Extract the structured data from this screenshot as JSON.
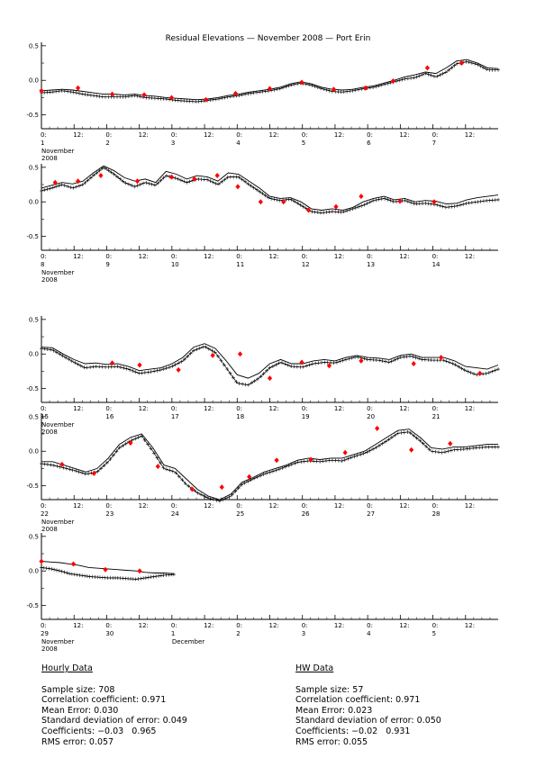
{
  "page": {
    "title": "Residual Elevations — November 2008 — Port Erin"
  },
  "chart_data": [
    {
      "type": "line",
      "y_ticks": [
        "0.5",
        "0.0",
        "-0.5"
      ],
      "ylim": [
        -0.7,
        0.55
      ],
      "x_tick_labels": [
        "0:",
        "12:",
        "0:",
        "12:",
        "0:",
        "12:",
        "0:",
        "12:",
        "0:",
        "12:",
        "0:",
        "12:",
        "0:",
        "12:"
      ],
      "day_labels": [
        "1",
        "2",
        "3",
        "4",
        "5",
        "6",
        "7"
      ],
      "month_label": [
        "November",
        "2008"
      ],
      "series": [
        {
          "values": [
            -0.15,
            -0.14,
            -0.13,
            -0.14,
            -0.16,
            -0.18,
            -0.2,
            -0.2,
            -0.21,
            -0.2,
            -0.22,
            -0.23,
            -0.25,
            -0.26,
            -0.27,
            -0.28,
            -0.27,
            -0.25,
            -0.22,
            -0.2,
            -0.17,
            -0.15,
            -0.13,
            -0.1,
            -0.05,
            -0.02,
            -0.05,
            -0.1,
            -0.13,
            -0.14,
            -0.13,
            -0.1,
            -0.08,
            -0.04,
            0.0,
            0.05,
            0.08,
            0.12,
            0.1,
            0.18,
            0.28,
            0.3,
            0.25,
            0.18,
            0.17
          ]
        },
        {
          "values": [
            -0.18,
            -0.17,
            -0.15,
            -0.17,
            -0.2,
            -0.22,
            -0.24,
            -0.24,
            -0.24,
            -0.22,
            -0.25,
            -0.26,
            -0.27,
            -0.29,
            -0.3,
            -0.31,
            -0.29,
            -0.27,
            -0.24,
            -0.22,
            -0.19,
            -0.17,
            -0.15,
            -0.12,
            -0.07,
            -0.04,
            -0.07,
            -0.12,
            -0.16,
            -0.17,
            -0.15,
            -0.12,
            -0.1,
            -0.06,
            -0.02,
            0.02,
            0.04,
            0.1,
            0.05,
            0.12,
            0.24,
            0.27,
            0.23,
            0.15,
            0.15
          ]
        },
        {
          "points": [
            [
              0.0,
              -0.15
            ],
            [
              0.08,
              -0.11
            ],
            [
              0.155,
              -0.2
            ],
            [
              0.225,
              -0.21
            ],
            [
              0.285,
              -0.25
            ],
            [
              0.36,
              -0.28
            ],
            [
              0.425,
              -0.19
            ],
            [
              0.5,
              -0.12
            ],
            [
              0.57,
              -0.03
            ],
            [
              0.64,
              -0.13
            ],
            [
              0.71,
              -0.11
            ],
            [
              0.77,
              -0.01
            ],
            [
              0.845,
              0.18
            ],
            [
              0.92,
              0.25
            ]
          ]
        }
      ]
    },
    {
      "type": "line",
      "y_ticks": [
        "0.5",
        "0.0",
        "-0.5"
      ],
      "ylim": [
        -0.7,
        0.55
      ],
      "x_tick_labels": [
        "0:",
        "12:",
        "0:",
        "12:",
        "0:",
        "12:",
        "0:",
        "12:",
        "0:",
        "12:",
        "0:",
        "12:",
        "0:",
        "12:"
      ],
      "day_labels": [
        "8",
        "9",
        "10",
        "11",
        "12",
        "13",
        "14"
      ],
      "month_label": [
        "November",
        "2008"
      ],
      "series": [
        {
          "values": [
            0.2,
            0.24,
            0.28,
            0.26,
            0.3,
            0.42,
            0.52,
            0.45,
            0.35,
            0.3,
            0.33,
            0.28,
            0.44,
            0.4,
            0.33,
            0.38,
            0.36,
            0.3,
            0.42,
            0.4,
            0.3,
            0.2,
            0.08,
            0.05,
            0.06,
            0.0,
            -0.1,
            -0.12,
            -0.1,
            -0.12,
            -0.08,
            0.0,
            0.05,
            0.08,
            0.03,
            0.05,
            0.0,
            0.02,
            0.01,
            -0.03,
            -0.02,
            0.03,
            0.06,
            0.08,
            0.1
          ]
        },
        {
          "values": [
            0.16,
            0.2,
            0.25,
            0.2,
            0.25,
            0.38,
            0.5,
            0.4,
            0.28,
            0.22,
            0.28,
            0.24,
            0.38,
            0.34,
            0.28,
            0.33,
            0.32,
            0.25,
            0.36,
            0.36,
            0.25,
            0.15,
            0.05,
            0.02,
            0.04,
            -0.05,
            -0.14,
            -0.16,
            -0.14,
            -0.15,
            -0.1,
            -0.05,
            0.02,
            0.05,
            0.0,
            0.02,
            -0.03,
            -0.02,
            -0.04,
            -0.08,
            -0.06,
            -0.02,
            0.0,
            0.02,
            0.03
          ]
        },
        {
          "points": [
            [
              0.03,
              0.28
            ],
            [
              0.08,
              0.3
            ],
            [
              0.13,
              0.38
            ],
            [
              0.21,
              0.3
            ],
            [
              0.285,
              0.36
            ],
            [
              0.335,
              0.33
            ],
            [
              0.385,
              0.38
            ],
            [
              0.43,
              0.22
            ],
            [
              0.48,
              0.0
            ],
            [
              0.53,
              0.0
            ],
            [
              0.585,
              -0.12
            ],
            [
              0.645,
              -0.07
            ],
            [
              0.7,
              0.08
            ],
            [
              0.785,
              0.01
            ],
            [
              0.86,
              0.0
            ]
          ]
        }
      ]
    },
    {
      "type": "line",
      "y_ticks": [
        "0.5",
        "0.0",
        "-0.5"
      ],
      "ylim": [
        -0.7,
        0.55
      ],
      "x_tick_labels": [
        "0:",
        "12:",
        "0:",
        "12:",
        "0:",
        "12:",
        "0:",
        "12:",
        "0:",
        "12:",
        "0:",
        "12:",
        "0:",
        "12:"
      ],
      "day_labels": [
        "15",
        "16",
        "17",
        "18",
        "19",
        "20",
        "21"
      ],
      "month_label": [
        "November",
        "2008"
      ],
      "series": [
        {
          "values": [
            0.1,
            0.09,
            0.0,
            -0.08,
            -0.14,
            -0.13,
            -0.15,
            -0.14,
            -0.18,
            -0.24,
            -0.22,
            -0.2,
            -0.14,
            -0.05,
            0.1,
            0.15,
            0.08,
            -0.1,
            -0.3,
            -0.35,
            -0.28,
            -0.14,
            -0.08,
            -0.14,
            -0.14,
            -0.1,
            -0.08,
            -0.1,
            -0.05,
            -0.02,
            -0.05,
            -0.06,
            -0.08,
            -0.02,
            0.0,
            -0.05,
            -0.05,
            -0.05,
            -0.1,
            -0.18,
            -0.2,
            -0.22,
            -0.16
          ]
        },
        {
          "values": [
            0.08,
            0.06,
            -0.03,
            -0.12,
            -0.2,
            -0.18,
            -0.19,
            -0.18,
            -0.22,
            -0.28,
            -0.26,
            -0.23,
            -0.18,
            -0.1,
            0.05,
            0.11,
            0.02,
            -0.2,
            -0.42,
            -0.45,
            -0.35,
            -0.2,
            -0.12,
            -0.18,
            -0.19,
            -0.14,
            -0.12,
            -0.13,
            -0.08,
            -0.04,
            -0.08,
            -0.09,
            -0.12,
            -0.05,
            -0.03,
            -0.08,
            -0.09,
            -0.09,
            -0.15,
            -0.24,
            -0.3,
            -0.28,
            -0.22
          ]
        },
        {
          "points": [
            [
              0.155,
              -0.13
            ],
            [
              0.215,
              -0.16
            ],
            [
              0.3,
              -0.23
            ],
            [
              0.375,
              -0.02
            ],
            [
              0.435,
              0.0
            ],
            [
              0.5,
              -0.35
            ],
            [
              0.57,
              -0.12
            ],
            [
              0.63,
              -0.17
            ],
            [
              0.7,
              -0.1
            ],
            [
              0.815,
              -0.14
            ],
            [
              0.875,
              -0.05
            ],
            [
              0.96,
              -0.28
            ]
          ]
        }
      ]
    },
    {
      "type": "line",
      "y_ticks": [
        "0.5",
        "0.0",
        "-0.5"
      ],
      "ylim": [
        -0.7,
        0.55
      ],
      "x_tick_labels": [
        "0:",
        "12:",
        "0:",
        "12:",
        "0:",
        "12:",
        "0:",
        "12:",
        "0:",
        "12:",
        "0:",
        "12:",
        "0:",
        "12:"
      ],
      "day_labels": [
        "22",
        "23",
        "24",
        "25",
        "26",
        "27",
        "28"
      ],
      "month_label": [
        "November",
        "2008"
      ],
      "series": [
        {
          "values": [
            -0.15,
            -0.15,
            -0.2,
            -0.25,
            -0.3,
            -0.25,
            -0.1,
            0.1,
            0.2,
            0.25,
            0.05,
            -0.2,
            -0.25,
            -0.4,
            -0.55,
            -0.65,
            -0.7,
            -0.62,
            -0.45,
            -0.38,
            -0.3,
            -0.25,
            -0.2,
            -0.13,
            -0.1,
            -0.12,
            -0.1,
            -0.1,
            -0.05,
            0.0,
            0.1,
            0.2,
            0.3,
            0.32,
            0.2,
            0.05,
            0.03,
            0.06,
            0.06,
            0.08,
            0.1,
            0.1
          ]
        },
        {
          "values": [
            -0.18,
            -0.2,
            -0.24,
            -0.28,
            -0.33,
            -0.3,
            -0.15,
            0.05,
            0.15,
            0.22,
            0.0,
            -0.25,
            -0.3,
            -0.48,
            -0.6,
            -0.68,
            -0.72,
            -0.65,
            -0.48,
            -0.4,
            -0.33,
            -0.28,
            -0.22,
            -0.16,
            -0.14,
            -0.15,
            -0.13,
            -0.14,
            -0.08,
            -0.03,
            0.05,
            0.15,
            0.26,
            0.28,
            0.15,
            0.0,
            -0.02,
            0.02,
            0.03,
            0.05,
            0.06,
            0.06
          ]
        },
        {
          "points": [
            [
              0.045,
              -0.19
            ],
            [
              0.115,
              -0.32
            ],
            [
              0.195,
              0.12
            ],
            [
              0.255,
              -0.22
            ],
            [
              0.33,
              -0.55
            ],
            [
              0.395,
              -0.52
            ],
            [
              0.455,
              -0.37
            ],
            [
              0.515,
              -0.13
            ],
            [
              0.59,
              -0.12
            ],
            [
              0.665,
              -0.02
            ],
            [
              0.735,
              0.33
            ],
            [
              0.81,
              0.02
            ],
            [
              0.895,
              0.11
            ]
          ]
        }
      ]
    },
    {
      "type": "line",
      "y_ticks": [
        "0.5",
        "0.0",
        "-0.5"
      ],
      "ylim": [
        -0.7,
        0.55
      ],
      "x_tick_labels": [
        "0:",
        "12:",
        "0:",
        "12:",
        "0:",
        "12:",
        "0:",
        "12:",
        "0:",
        "12:",
        "0:",
        "12:",
        "0:",
        "12:"
      ],
      "day_labels": [
        "29",
        "30",
        "1",
        "2",
        "3",
        "4",
        "5"
      ],
      "month_label": [
        "November",
        "2008"
      ],
      "extra_label": "December",
      "data_end_fraction": 0.29,
      "series": [
        {
          "values": [
            0.14,
            0.13,
            0.12,
            0.1,
            0.08,
            0.05,
            0.04,
            0.03,
            0.02,
            0.01,
            0.0,
            -0.02,
            -0.03,
            -0.03,
            -0.04
          ]
        },
        {
          "values": [
            0.05,
            0.03,
            0.0,
            -0.04,
            -0.06,
            -0.08,
            -0.09,
            -0.1,
            -0.1,
            -0.11,
            -0.12,
            -0.1,
            -0.08,
            -0.06,
            -0.05
          ]
        },
        {
          "points": [
            [
              0.0,
              0.14
            ],
            [
              0.07,
              0.1
            ],
            [
              0.14,
              0.02
            ],
            [
              0.215,
              0.0
            ]
          ]
        }
      ]
    }
  ],
  "stats": {
    "hourly": {
      "header": "Hourly Data",
      "lines": [
        "Sample size: 708",
        "Correlation coefficient: 0.971",
        "Mean Error: 0.030",
        "Standard deviation of error: 0.049",
        "Coefficients: −0.03   0.965",
        "RMS error: 0.057"
      ]
    },
    "hw": {
      "header": "HW Data",
      "lines": [
        "Sample size: 57",
        "Correlation coefficient: 0.971",
        "Mean Error: 0.023",
        "Standard deviation of error: 0.050",
        "Coefficients: −0.02   0.931",
        "RMS error: 0.055"
      ]
    }
  },
  "colors": {
    "marker": "#ff0000",
    "line": "#000000"
  }
}
